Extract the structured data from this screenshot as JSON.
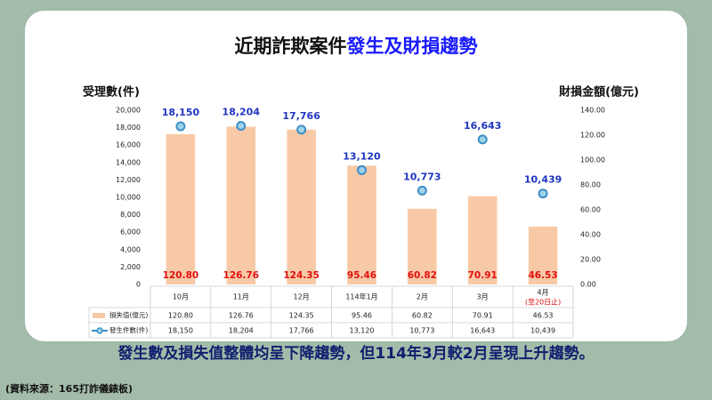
{
  "header": {
    "title_plain": "近期詐欺案件",
    "title_highlight": "發生及財損趨勢"
  },
  "chart_data": {
    "type": "bar",
    "categories": [
      "10月",
      "11月",
      "12月",
      "114年1月",
      "2月",
      "3月",
      "4月"
    ],
    "category_notes": [
      null,
      null,
      null,
      null,
      null,
      null,
      "(至20日止)"
    ],
    "y_label": "受理數(件)",
    "y2_label": "財損金額(億元)",
    "ylim": [
      0,
      20000
    ],
    "yticks": [
      0,
      {
        "value": 2000,
        "label": "2,000"
      },
      {
        "value": 4000,
        "label": "4,000"
      },
      {
        "value": 6000,
        "label": "6,000"
      },
      {
        "value": 8000,
        "label": "8,000"
      },
      {
        "value": 10000,
        "label": "10,000"
      },
      {
        "value": 12000,
        "label": "12,000"
      },
      {
        "value": 14000,
        "label": "14,000"
      },
      {
        "value": 16000,
        "label": "16,000"
      },
      {
        "value": 18000,
        "label": "18,000"
      },
      {
        "value": 20000,
        "label": "20,000"
      }
    ],
    "y2lim": [
      0,
      140
    ],
    "y2ticks": [
      {
        "value": 0,
        "label": "0.00"
      },
      {
        "value": 20,
        "label": "20.00"
      },
      {
        "value": 40,
        "label": "40.00"
      },
      {
        "value": 60,
        "label": "60.00"
      },
      {
        "value": 80,
        "label": "80.00"
      },
      {
        "value": 100,
        "label": "100.00"
      },
      {
        "value": 120,
        "label": "120.00"
      },
      {
        "value": 140,
        "label": "140.00"
      }
    ],
    "series": [
      {
        "name": "損失值(億元)",
        "type": "bar",
        "axis": "y2",
        "color": "#f8c9a6",
        "label_color": "#e01010",
        "values": [
          120.8,
          126.76,
          124.35,
          95.46,
          60.82,
          70.91,
          46.53
        ],
        "value_labels": [
          "120.80",
          "126.76",
          "124.35",
          "95.46",
          "60.82",
          "70.91",
          "46.53"
        ]
      },
      {
        "name": "發生件數(件)",
        "type": "marker",
        "color": "#9fd3e8",
        "edge_color": "#3d8fc6",
        "label_color": "#1f35c0",
        "values": [
          18150,
          18204,
          17766,
          13120,
          10773,
          16643,
          10439
        ],
        "value_labels": [
          "18,150",
          "18,204",
          "17,766",
          "13,120",
          "10,773",
          "16,643",
          "10,439"
        ]
      }
    ]
  },
  "conclusion": "發生數及損失值整體均呈下降趨勢，但114年3月較2月呈現上升趨勢。",
  "source": "(資料來源：165打詐儀錶板)"
}
